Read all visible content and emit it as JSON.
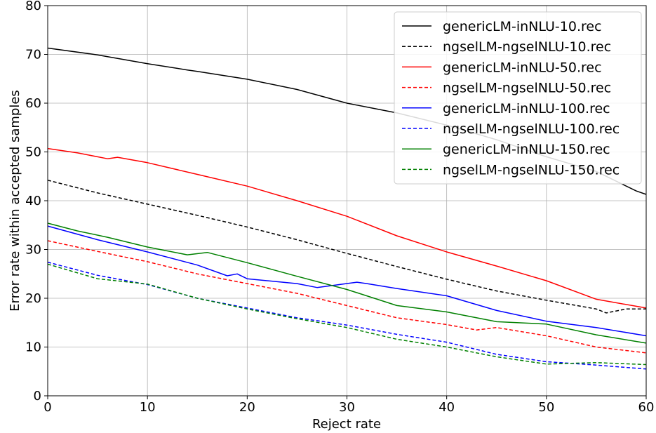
{
  "chart_data": {
    "type": "line",
    "title": "",
    "xlabel": "Reject rate",
    "ylabel": "Error rate within accepted samples",
    "xlim": [
      0,
      60
    ],
    "ylim": [
      0,
      80
    ],
    "xticks": [
      0,
      10,
      20,
      30,
      40,
      50,
      60
    ],
    "yticks": [
      0,
      10,
      20,
      30,
      40,
      50,
      60,
      70,
      80
    ],
    "grid": true,
    "legend_position": "top-right",
    "series": [
      {
        "name": "genericLM-inNLU-10.rec",
        "color": "#000000",
        "dash": "solid",
        "x": [
          0,
          5,
          10,
          14,
          15,
          20,
          25,
          30,
          35,
          40,
          45,
          50,
          55,
          59,
          60
        ],
        "y": [
          71.3,
          69.9,
          68.1,
          66.8,
          66.5,
          64.9,
          62.8,
          60.0,
          58.0,
          55.5,
          52.5,
          49.0,
          46.0,
          42.0,
          41.3
        ]
      },
      {
        "name": "ngselLM-ngselNLU-10.rec",
        "color": "#000000",
        "dash": "dashed",
        "x": [
          0,
          5,
          10,
          15,
          20,
          25,
          30,
          35,
          40,
          45,
          50,
          55,
          56,
          58,
          60
        ],
        "y": [
          44.2,
          41.6,
          39.3,
          37.0,
          34.6,
          32.0,
          29.2,
          26.5,
          23.9,
          21.5,
          19.6,
          17.8,
          17.0,
          17.8,
          17.8
        ]
      },
      {
        "name": "genericLM-inNLU-50.rec",
        "color": "#ff0000",
        "dash": "solid",
        "x": [
          0,
          3,
          6,
          7,
          10,
          15,
          20,
          25,
          30,
          35,
          40,
          45,
          50,
          55,
          60
        ],
        "y": [
          50.7,
          49.8,
          48.6,
          48.9,
          47.8,
          45.4,
          43.0,
          40.0,
          36.8,
          32.8,
          29.5,
          26.6,
          23.6,
          19.8,
          18.0
        ]
      },
      {
        "name": "ngselLM-ngselNLU-50.rec",
        "color": "#ff0000",
        "dash": "dashed",
        "x": [
          0,
          5,
          10,
          15,
          20,
          25,
          30,
          35,
          40,
          43,
          45,
          50,
          55,
          60
        ],
        "y": [
          31.8,
          29.6,
          27.5,
          25.0,
          23.0,
          21.0,
          18.5,
          16.0,
          14.6,
          13.5,
          14.0,
          12.3,
          10.0,
          8.8
        ]
      },
      {
        "name": "genericLM-inNLU-100.rec",
        "color": "#0000ff",
        "dash": "solid",
        "x": [
          0,
          5,
          10,
          15,
          18,
          19,
          20,
          25,
          27,
          31,
          32,
          35,
          40,
          45,
          50,
          55,
          60
        ],
        "y": [
          34.8,
          32.0,
          29.5,
          26.8,
          24.6,
          25.0,
          24.0,
          23.0,
          22.2,
          23.3,
          23.0,
          22.0,
          20.5,
          17.5,
          15.3,
          14.0,
          12.3
        ]
      },
      {
        "name": "ngselLM-ngselNLU-100.rec",
        "color": "#0000ff",
        "dash": "dashed",
        "x": [
          0,
          5,
          10,
          15,
          20,
          25,
          30,
          35,
          40,
          45,
          50,
          55,
          60
        ],
        "y": [
          27.4,
          24.7,
          22.8,
          20.0,
          18.0,
          16.0,
          14.5,
          12.6,
          11.0,
          8.5,
          7.0,
          6.3,
          5.5
        ]
      },
      {
        "name": "genericLM-inNLU-150.rec",
        "color": "#008000",
        "dash": "solid",
        "x": [
          0,
          3,
          6,
          10,
          14,
          16,
          20,
          25,
          30,
          35,
          40,
          45,
          50,
          55,
          60
        ],
        "y": [
          35.4,
          33.8,
          32.5,
          30.5,
          28.9,
          29.4,
          27.3,
          24.5,
          21.8,
          18.5,
          17.2,
          15.2,
          14.7,
          12.5,
          10.8
        ]
      },
      {
        "name": "ngselLM-ngselNLU-150.rec",
        "color": "#008000",
        "dash": "dashed",
        "x": [
          0,
          5,
          10,
          15,
          20,
          25,
          30,
          35,
          40,
          45,
          50,
          55,
          60
        ],
        "y": [
          27.0,
          24.0,
          22.9,
          20.0,
          17.8,
          15.8,
          14.0,
          11.6,
          10.0,
          8.0,
          6.5,
          6.8,
          6.4
        ]
      }
    ]
  }
}
